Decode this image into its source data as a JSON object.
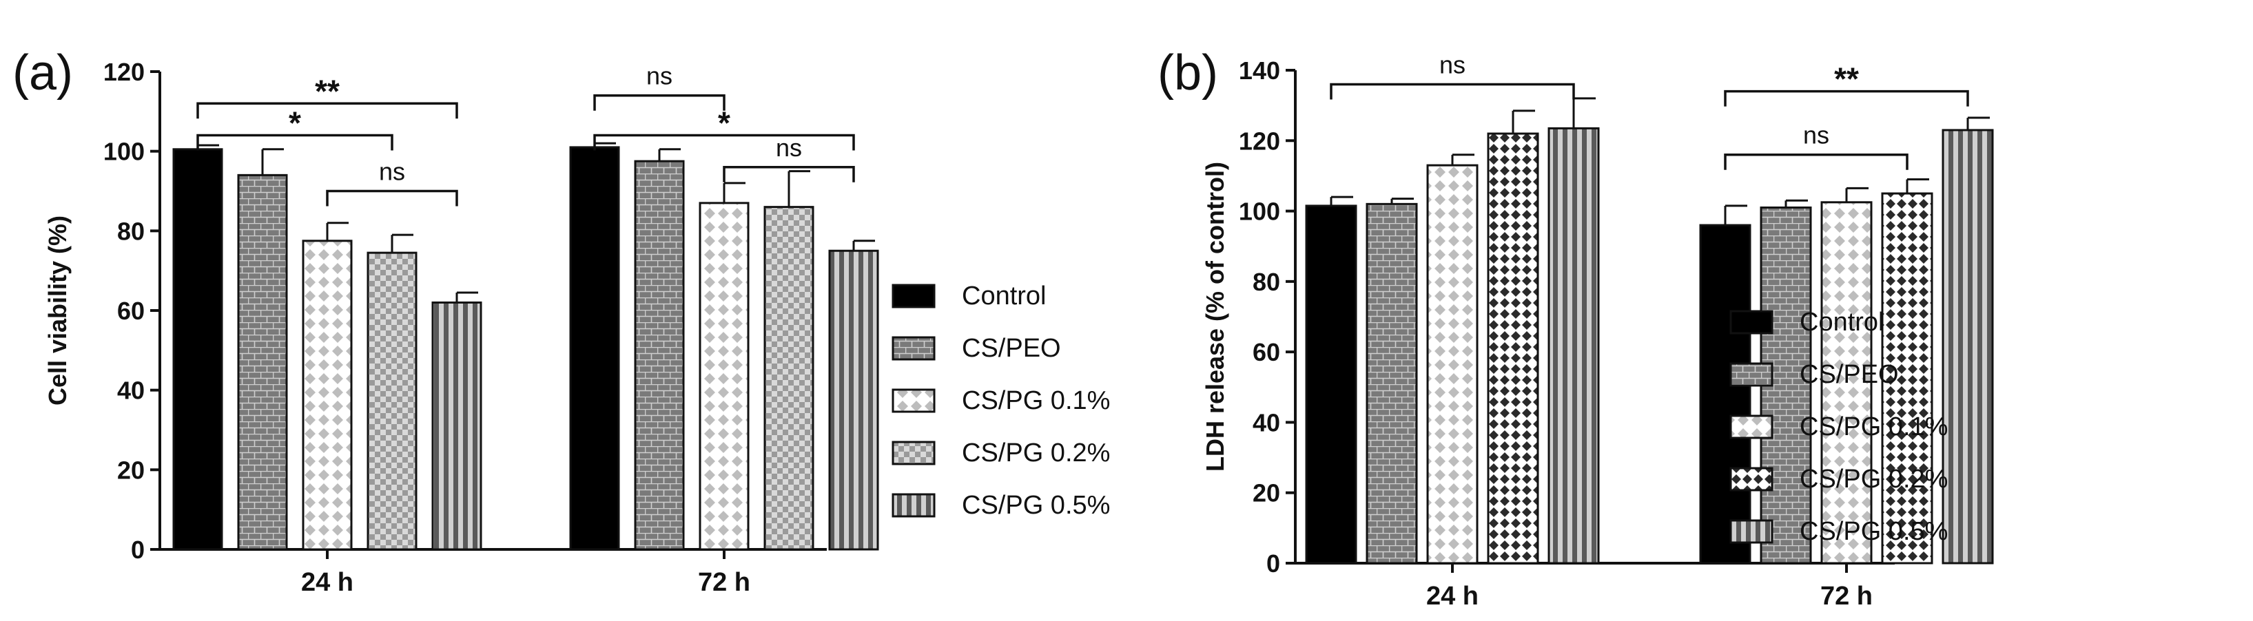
{
  "legend_series": [
    "Control",
    "CS/PEO",
    "CS/PG 0.1%",
    "CS/PG 0.2%",
    "CS/PG 0.5%"
  ],
  "colors": {
    "control": "#000000",
    "cspeo": "#7a7a7a",
    "pg01": "#c8c8c8",
    "pg02": "#9a9a9a",
    "pg05": "#8a8a8a"
  },
  "chart_data": [
    {
      "type": "bar",
      "panel_label": "(a)",
      "ylabel": "Cell viability (%)",
      "xlabel": "",
      "ylim": [
        0,
        120
      ],
      "yticks": [
        0,
        20,
        40,
        60,
        80,
        100,
        120
      ],
      "grid": false,
      "legend_position": "right",
      "categories": [
        "24 h",
        "72 h"
      ],
      "series": [
        {
          "name": "Control",
          "values": [
            100.5,
            101
          ],
          "errors": [
            1.0,
            1.0
          ]
        },
        {
          "name": "CS/PEO",
          "values": [
            94,
            97.5
          ],
          "errors": [
            6.5,
            3.0
          ]
        },
        {
          "name": "CS/PG 0.1%",
          "values": [
            77.5,
            87
          ],
          "errors": [
            4.5,
            5.0
          ]
        },
        {
          "name": "CS/PG 0.2%",
          "values": [
            74.5,
            86
          ],
          "errors": [
            4.5,
            9.0
          ]
        },
        {
          "name": "CS/PG 0.5%",
          "values": [
            62,
            75
          ],
          "errors": [
            2.5,
            2.5
          ]
        }
      ],
      "annotations": [
        {
          "text": "**",
          "group": 0,
          "from": 0,
          "to": 4,
          "y": 112
        },
        {
          "text": "*",
          "group": 0,
          "from": 0,
          "to": 3,
          "y": 104
        },
        {
          "text": "ns",
          "group": 0,
          "from": 2,
          "to": 4,
          "y": 90
        },
        {
          "text": "ns",
          "group": 1,
          "from": 0,
          "to": 2,
          "y": 114
        },
        {
          "text": "*",
          "group": 1,
          "from": 0,
          "to": 4,
          "y": 104
        },
        {
          "text": "ns",
          "group": 1,
          "from": 2,
          "to": 4,
          "y": 96
        }
      ]
    },
    {
      "type": "bar",
      "panel_label": "(b)",
      "ylabel": "LDH release (% of control)",
      "xlabel": "",
      "ylim": [
        0,
        140
      ],
      "yticks": [
        0,
        20,
        40,
        60,
        80,
        100,
        120,
        140
      ],
      "grid": false,
      "legend_position": "right",
      "categories": [
        "24 h",
        "72 h"
      ],
      "series": [
        {
          "name": "Control",
          "values": [
            101.5,
            96
          ],
          "errors": [
            2.5,
            5.5
          ]
        },
        {
          "name": "CS/PEO",
          "values": [
            102,
            101
          ],
          "errors": [
            1.5,
            2.0
          ]
        },
        {
          "name": "CS/PG 0.1%",
          "values": [
            113,
            102.5
          ],
          "errors": [
            3.0,
            4.0
          ]
        },
        {
          "name": "CS/PG 0.2%",
          "values": [
            122,
            105
          ],
          "errors": [
            6.5,
            4.0
          ]
        },
        {
          "name": "CS/PG 0.5%",
          "values": [
            123.5,
            123
          ],
          "errors": [
            8.5,
            3.5
          ]
        }
      ],
      "annotations": [
        {
          "text": "ns",
          "group": 0,
          "from": 0,
          "to": 4,
          "y": 136
        },
        {
          "text": "**",
          "group": 1,
          "from": 0,
          "to": 4,
          "y": 134
        },
        {
          "text": "ns",
          "group": 1,
          "from": 0,
          "to": 3,
          "y": 116
        }
      ]
    }
  ]
}
